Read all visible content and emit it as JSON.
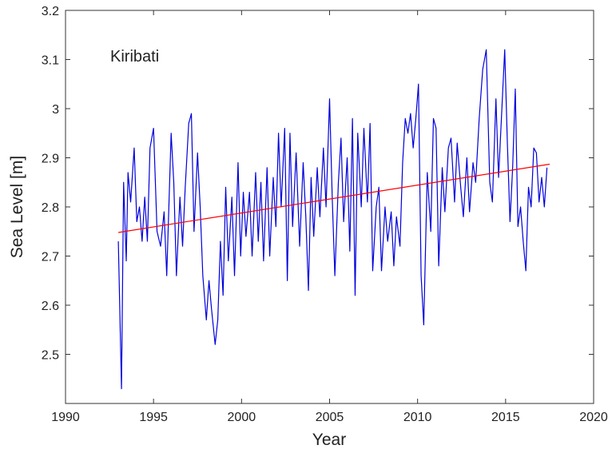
{
  "chart_data": {
    "type": "line",
    "annotation": "Kiribati",
    "xlabel": "Year",
    "ylabel": "Sea Level [m]",
    "xlim": [
      1990,
      2020
    ],
    "xticks": [
      1990,
      1995,
      2000,
      2005,
      2010,
      2015,
      2020
    ],
    "ylim": [
      2.4,
      3.2
    ],
    "yticks": [
      2.5,
      2.6,
      2.7,
      2.8,
      2.9,
      3,
      3.1,
      3.2
    ],
    "grid": false,
    "series": [
      {
        "color": "#0000dd",
        "x": [
          1993.0,
          1993.18,
          1993.3,
          1993.45,
          1993.55,
          1993.7,
          1993.9,
          1994.05,
          1994.2,
          1994.35,
          1994.5,
          1994.65,
          1994.8,
          1995.0,
          1995.2,
          1995.4,
          1995.6,
          1995.75,
          1996.0,
          1996.15,
          1996.3,
          1996.5,
          1996.65,
          1996.8,
          1997.0,
          1997.15,
          1997.3,
          1997.5,
          1997.65,
          1997.8,
          1998.0,
          1998.15,
          1998.3,
          1998.5,
          1998.65,
          1998.8,
          1998.95,
          1999.1,
          1999.25,
          1999.45,
          1999.6,
          1999.8,
          1999.95,
          2000.1,
          2000.25,
          2000.45,
          2000.6,
          2000.8,
          2000.95,
          2001.1,
          2001.25,
          2001.45,
          2001.6,
          2001.8,
          2001.95,
          2002.1,
          2002.25,
          2002.45,
          2002.6,
          2002.75,
          2002.9,
          2003.1,
          2003.3,
          2003.5,
          2003.65,
          2003.8,
          2003.95,
          2004.1,
          2004.3,
          2004.45,
          2004.65,
          2004.8,
          2005.0,
          2005.15,
          2005.3,
          2005.5,
          2005.65,
          2005.8,
          2006.0,
          2006.15,
          2006.3,
          2006.45,
          2006.6,
          2006.8,
          2006.95,
          2007.15,
          2007.3,
          2007.45,
          2007.65,
          2007.8,
          2007.95,
          2008.15,
          2008.3,
          2008.5,
          2008.65,
          2008.8,
          2009.0,
          2009.15,
          2009.3,
          2009.45,
          2009.6,
          2009.75,
          2009.9,
          2010.05,
          2010.2,
          2010.35,
          2010.55,
          2010.75,
          2010.9,
          2011.05,
          2011.2,
          2011.4,
          2011.55,
          2011.75,
          2011.9,
          2012.1,
          2012.25,
          2012.45,
          2012.6,
          2012.8,
          2012.95,
          2013.15,
          2013.3,
          2013.5,
          2013.7,
          2013.9,
          2014.1,
          2014.25,
          2014.45,
          2014.6,
          2014.95,
          2015.1,
          2015.25,
          2015.4,
          2015.55,
          2015.7,
          2015.85,
          2016.0,
          2016.15,
          2016.3,
          2016.45,
          2016.6,
          2016.75,
          2016.9,
          2017.05,
          2017.2,
          2017.35
        ],
        "values": [
          2.73,
          2.43,
          2.85,
          2.69,
          2.87,
          2.81,
          2.92,
          2.77,
          2.8,
          2.73,
          2.82,
          2.73,
          2.92,
          2.96,
          2.75,
          2.72,
          2.79,
          2.66,
          2.95,
          2.85,
          2.66,
          2.82,
          2.72,
          2.84,
          2.97,
          2.99,
          2.75,
          2.91,
          2.8,
          2.66,
          2.57,
          2.65,
          2.59,
          2.52,
          2.57,
          2.73,
          2.62,
          2.84,
          2.69,
          2.82,
          2.66,
          2.89,
          2.7,
          2.83,
          2.74,
          2.83,
          2.7,
          2.87,
          2.73,
          2.85,
          2.69,
          2.88,
          2.7,
          2.86,
          2.76,
          2.95,
          2.8,
          2.96,
          2.65,
          2.95,
          2.76,
          2.91,
          2.72,
          2.89,
          2.78,
          2.63,
          2.86,
          2.74,
          2.88,
          2.78,
          2.92,
          2.8,
          3.02,
          2.82,
          2.66,
          2.85,
          2.94,
          2.77,
          2.9,
          2.71,
          2.98,
          2.62,
          2.95,
          2.8,
          2.96,
          2.81,
          2.97,
          2.67,
          2.8,
          2.84,
          2.67,
          2.8,
          2.73,
          2.79,
          2.68,
          2.78,
          2.72,
          2.89,
          2.98,
          2.95,
          2.99,
          2.92,
          2.98,
          3.05,
          2.66,
          2.56,
          2.87,
          2.75,
          2.98,
          2.96,
          2.68,
          2.88,
          2.79,
          2.92,
          2.94,
          2.81,
          2.93,
          2.84,
          2.78,
          2.9,
          2.79,
          2.89,
          2.85,
          2.98,
          3.08,
          3.12,
          2.85,
          2.81,
          3.02,
          2.86,
          3.12,
          2.93,
          2.77,
          2.88,
          3.04,
          2.76,
          2.8,
          2.73,
          2.67,
          2.84,
          2.8,
          2.92,
          2.91,
          2.81,
          2.86,
          2.8,
          2.88
        ]
      },
      {
        "color": "#ff0000",
        "x": [
          1993.0,
          2017.5
        ],
        "values": [
          2.748,
          2.887
        ]
      }
    ]
  }
}
